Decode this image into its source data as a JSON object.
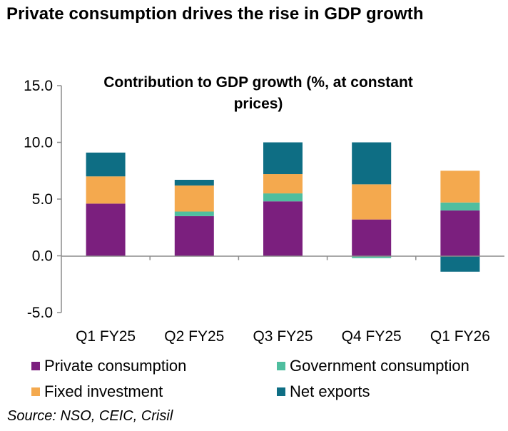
{
  "headline": "Private consumption drives the rise in GDP growth",
  "source": "Source: NSO, CEIC, Crisil",
  "colors": {
    "private_consumption": "#7B1F7E",
    "government_consumption": "#4FBE9F",
    "fixed_investment": "#F4A94E",
    "net_exports": "#0E6E84",
    "axis": "#8C8C8C"
  },
  "chart_data": {
    "type": "bar",
    "stacked": true,
    "title": "Contribution to GDP growth (%, at constant prices)",
    "title_lines": [
      "Contribution to GDP growth (%, at constant",
      "prices)"
    ],
    "categories": [
      "Q1 FY25",
      "Q2 FY25",
      "Q3 FY25",
      "Q4 FY25",
      "Q1 FY26"
    ],
    "y_ticks": [
      "15.0",
      "10.0",
      "5.0",
      "0.0",
      "-5.0"
    ],
    "ylim": [
      -5,
      15
    ],
    "xlabel": "",
    "ylabel": "",
    "series": [
      {
        "name": "Private consumption",
        "color_key": "private_consumption",
        "values": [
          4.6,
          3.5,
          4.8,
          3.2,
          4.0
        ]
      },
      {
        "name": "Government consumption",
        "color_key": "government_consumption",
        "values": [
          0.0,
          0.4,
          0.7,
          -0.2,
          0.7
        ]
      },
      {
        "name": "Fixed investment",
        "color_key": "fixed_investment",
        "values": [
          2.4,
          2.3,
          1.7,
          3.1,
          2.8
        ]
      },
      {
        "name": "Net exports",
        "color_key": "net_exports",
        "values": [
          2.1,
          0.5,
          2.8,
          3.7,
          -1.4
        ]
      }
    ],
    "legend": {
      "position": "bottom",
      "columns": 2
    }
  }
}
